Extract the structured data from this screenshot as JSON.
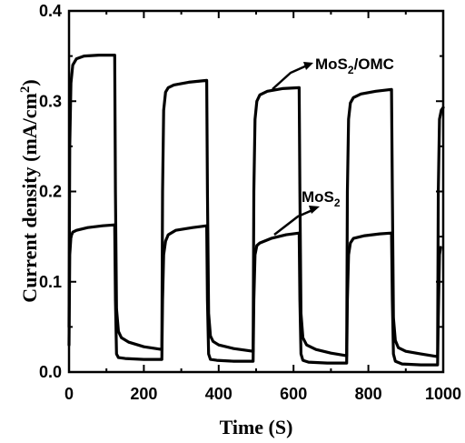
{
  "chart_data": {
    "type": "line",
    "title": "",
    "xlabel": "Time (S)",
    "ylabel_main": "Current density (mA/cm",
    "ylabel_sup": "2",
    "ylabel_end": ")",
    "xlim": [
      0,
      1000
    ],
    "ylim": [
      0,
      0.4
    ],
    "xticks": [
      0,
      200,
      400,
      600,
      800,
      1000
    ],
    "xtick_labels": [
      "0",
      "200",
      "400",
      "600",
      "800",
      "1000"
    ],
    "yticks": [
      0.0,
      0.1,
      0.2,
      0.3,
      0.4
    ],
    "ytick_labels": [
      "0.0",
      "0.1",
      "0.2",
      "0.3",
      "0.4"
    ],
    "grid": false,
    "legend": "none",
    "series": [
      {
        "name_main": "MoS",
        "name_sub": "2",
        "name_end": "/OMC",
        "color": "#000000",
        "x": [
          0,
          2,
          5,
          10,
          20,
          40,
          80,
          122,
          124,
          127,
          132,
          140,
          160,
          200,
          248,
          250,
          253,
          258,
          265,
          280,
          320,
          368,
          370,
          373,
          378,
          385,
          400,
          440,
          492,
          494,
          497,
          502,
          510,
          530,
          570,
          615,
          617,
          620,
          625,
          635,
          660,
          700,
          742,
          744,
          747,
          752,
          760,
          780,
          820,
          862,
          864,
          867,
          872,
          880,
          900,
          940,
          985,
          987,
          990,
          995,
          1000
        ],
        "y": [
          0.05,
          0.25,
          0.32,
          0.34,
          0.347,
          0.35,
          0.351,
          0.351,
          0.2,
          0.07,
          0.045,
          0.038,
          0.033,
          0.028,
          0.025,
          0.2,
          0.29,
          0.31,
          0.315,
          0.318,
          0.321,
          0.323,
          0.2,
          0.065,
          0.04,
          0.034,
          0.03,
          0.026,
          0.023,
          0.2,
          0.28,
          0.3,
          0.307,
          0.311,
          0.314,
          0.315,
          0.2,
          0.065,
          0.038,
          0.03,
          0.025,
          0.021,
          0.018,
          0.2,
          0.28,
          0.298,
          0.304,
          0.308,
          0.311,
          0.313,
          0.2,
          0.06,
          0.035,
          0.027,
          0.023,
          0.02,
          0.017,
          0.2,
          0.28,
          0.29,
          0.293
        ]
      },
      {
        "name_main": "MoS",
        "name_sub": "2",
        "name_end": "",
        "color": "#000000",
        "x": [
          0,
          2,
          5,
          10,
          20,
          50,
          90,
          122,
          124,
          127,
          132,
          150,
          200,
          248,
          250,
          253,
          258,
          265,
          285,
          330,
          368,
          370,
          373,
          378,
          395,
          440,
          492,
          494,
          497,
          502,
          510,
          540,
          580,
          615,
          617,
          620,
          625,
          640,
          690,
          742,
          744,
          747,
          752,
          760,
          790,
          830,
          862,
          864,
          867,
          872,
          890,
          940,
          985,
          987,
          990,
          993
        ],
        "y": [
          0.03,
          0.13,
          0.15,
          0.155,
          0.157,
          0.16,
          0.162,
          0.163,
          0.08,
          0.02,
          0.016,
          0.015,
          0.014,
          0.014,
          0.08,
          0.13,
          0.145,
          0.152,
          0.157,
          0.16,
          0.162,
          0.08,
          0.02,
          0.014,
          0.013,
          0.012,
          0.012,
          0.08,
          0.13,
          0.14,
          0.143,
          0.148,
          0.152,
          0.154,
          0.08,
          0.02,
          0.013,
          0.011,
          0.01,
          0.01,
          0.08,
          0.13,
          0.143,
          0.148,
          0.151,
          0.153,
          0.154,
          0.08,
          0.02,
          0.012,
          0.009,
          0.008,
          0.008,
          0.06,
          0.13,
          0.138
        ]
      }
    ]
  }
}
